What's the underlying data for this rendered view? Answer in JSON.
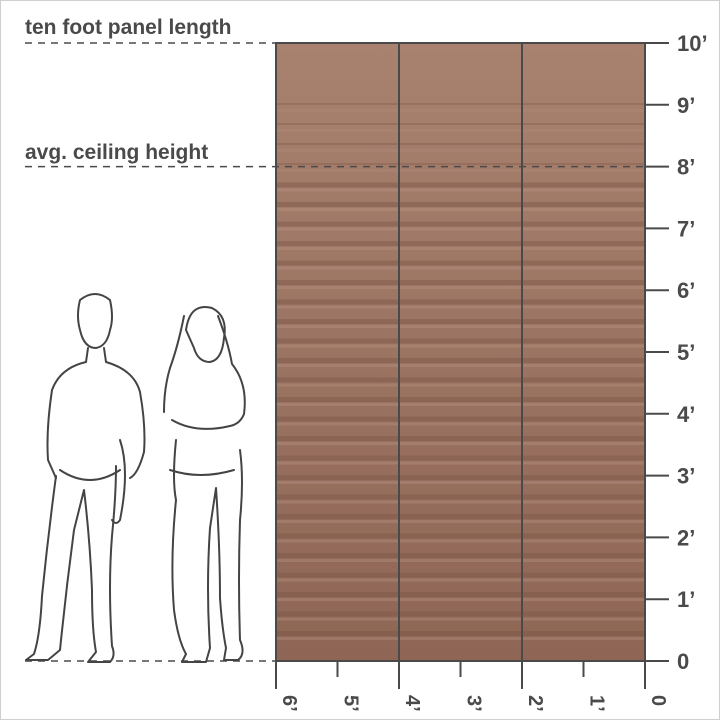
{
  "annotations": {
    "panel_length": "ten foot panel length",
    "ceiling_height": "avg. ceiling height"
  },
  "vertical_axis": [
    "0",
    "1’",
    "2’",
    "3’",
    "4’",
    "5’",
    "6’",
    "7’",
    "8’",
    "9’",
    "10’"
  ],
  "horizontal_axis": [
    "6’",
    "5’",
    "4’",
    "3’",
    "2’",
    "1’",
    "0"
  ],
  "panel": {
    "width_ft": 6,
    "height_ft": 10,
    "sections": 3,
    "color": "#9a7262",
    "line_color": "#4a4a4a"
  },
  "reference_lines_ft": [
    10,
    8,
    0
  ],
  "figures": [
    "man-silhouette",
    "woman-silhouette"
  ]
}
